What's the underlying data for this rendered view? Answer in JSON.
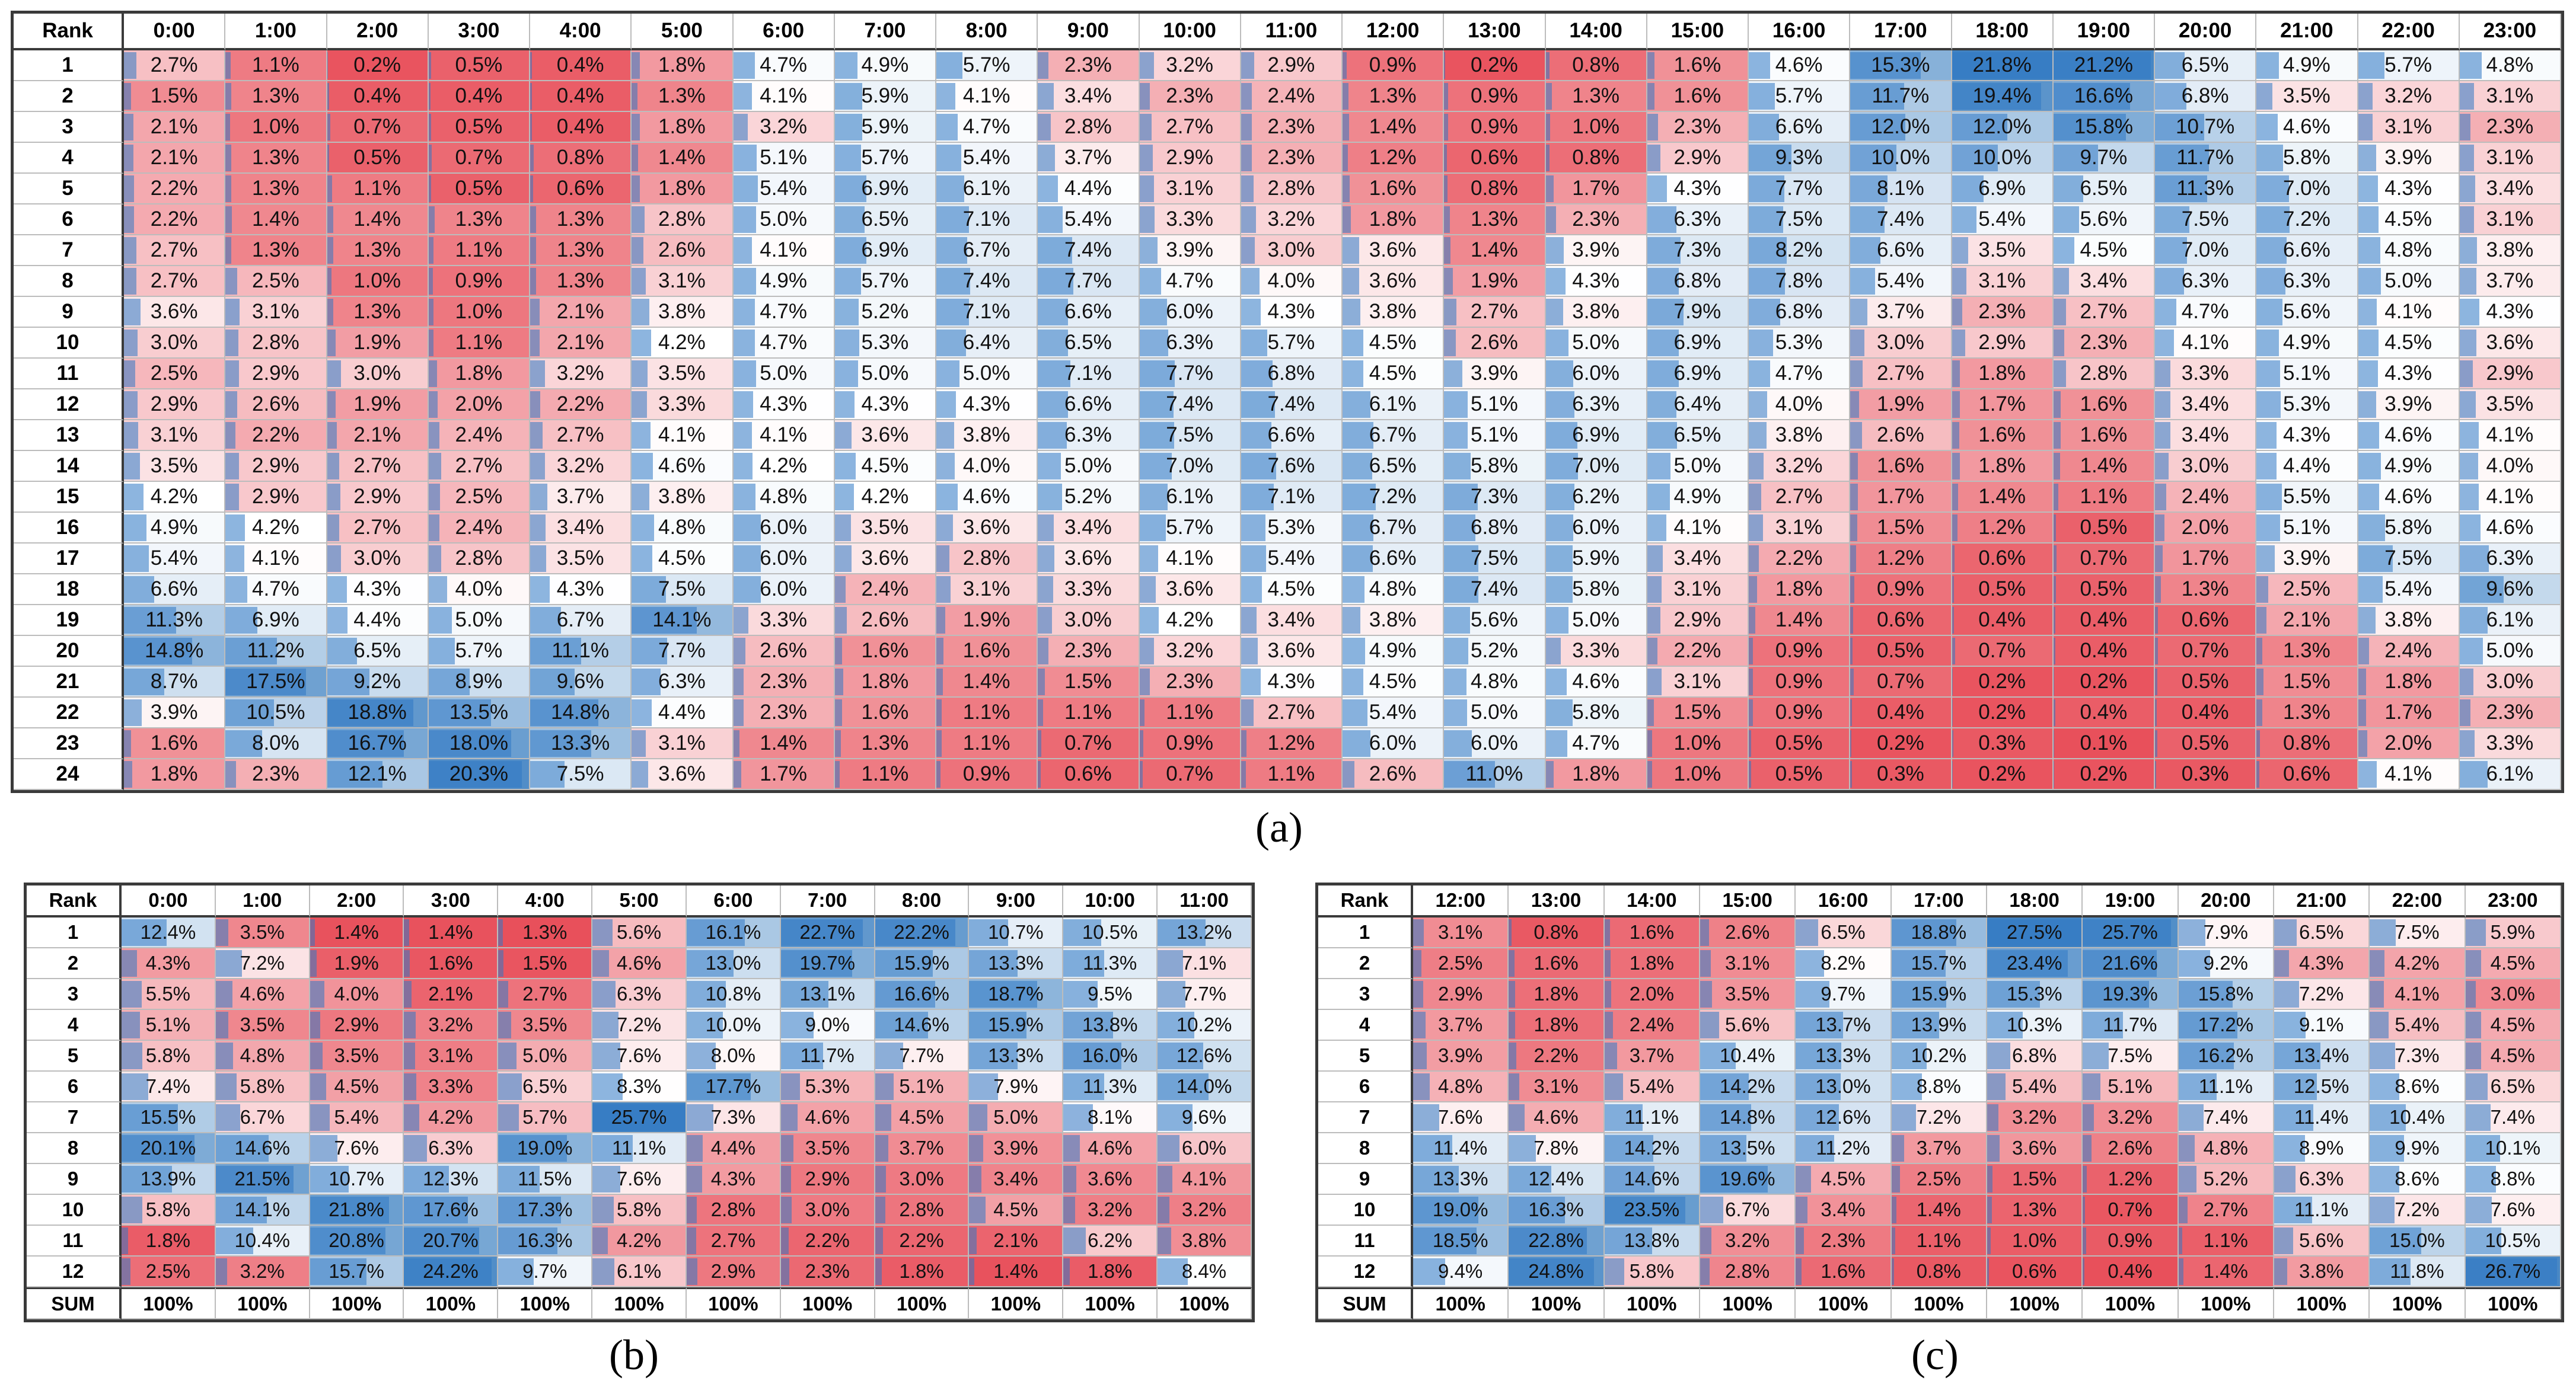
{
  "colors": {
    "low": "#e8505b",
    "mid": "#ffffff",
    "high": "#1f6db8",
    "bar": "#2f78c4"
  },
  "captions": {
    "a": "(a)",
    "b": "(b)",
    "c": "(c)"
  },
  "chart_data": [
    {
      "type": "table",
      "id": "a",
      "corner": "Rank",
      "columns": [
        "0:00",
        "1:00",
        "2:00",
        "3:00",
        "4:00",
        "5:00",
        "6:00",
        "7:00",
        "8:00",
        "9:00",
        "10:00",
        "11:00",
        "12:00",
        "13:00",
        "14:00",
        "15:00",
        "16:00",
        "17:00",
        "18:00",
        "19:00",
        "20:00",
        "21:00",
        "22:00",
        "23:00"
      ],
      "ranks": [
        "1",
        "2",
        "3",
        "4",
        "5",
        "6",
        "7",
        "8",
        "9",
        "10",
        "11",
        "12",
        "13",
        "14",
        "15",
        "16",
        "17",
        "18",
        "19",
        "20",
        "21",
        "22",
        "23",
        "24"
      ],
      "values": [
        [
          "2.7%",
          "1.1%",
          "0.2%",
          "0.5%",
          "0.4%",
          "1.8%",
          "4.7%",
          "4.9%",
          "5.7%",
          "2.3%",
          "3.2%",
          "2.9%",
          "0.9%",
          "0.2%",
          "0.8%",
          "1.6%",
          "4.6%",
          "15.3%",
          "21.8%",
          "21.2%",
          "6.5%",
          "4.9%",
          "5.7%",
          "4.8%"
        ],
        [
          "1.5%",
          "1.3%",
          "0.4%",
          "0.4%",
          "0.4%",
          "1.3%",
          "4.1%",
          "5.9%",
          "4.1%",
          "3.4%",
          "2.3%",
          "2.4%",
          "1.3%",
          "0.9%",
          "1.3%",
          "1.6%",
          "5.7%",
          "11.7%",
          "19.4%",
          "16.6%",
          "6.8%",
          "3.5%",
          "3.2%",
          "3.1%"
        ],
        [
          "2.1%",
          "1.0%",
          "0.7%",
          "0.5%",
          "0.4%",
          "1.8%",
          "3.2%",
          "5.9%",
          "4.7%",
          "2.8%",
          "2.7%",
          "2.3%",
          "1.4%",
          "0.9%",
          "1.0%",
          "2.3%",
          "6.6%",
          "12.0%",
          "12.0%",
          "15.8%",
          "10.7%",
          "4.6%",
          "3.1%",
          "2.3%"
        ],
        [
          "2.1%",
          "1.3%",
          "0.5%",
          "0.7%",
          "0.8%",
          "1.4%",
          "5.1%",
          "5.7%",
          "5.4%",
          "3.7%",
          "2.9%",
          "2.3%",
          "1.2%",
          "0.6%",
          "0.8%",
          "2.9%",
          "9.3%",
          "10.0%",
          "10.0%",
          "9.7%",
          "11.7%",
          "5.8%",
          "3.9%",
          "3.1%"
        ],
        [
          "2.2%",
          "1.3%",
          "1.1%",
          "0.5%",
          "0.6%",
          "1.8%",
          "5.4%",
          "6.9%",
          "6.1%",
          "4.4%",
          "3.1%",
          "2.8%",
          "1.6%",
          "0.8%",
          "1.7%",
          "4.3%",
          "7.7%",
          "8.1%",
          "6.9%",
          "6.5%",
          "11.3%",
          "7.0%",
          "4.3%",
          "3.4%"
        ],
        [
          "2.2%",
          "1.4%",
          "1.4%",
          "1.3%",
          "1.3%",
          "2.8%",
          "5.0%",
          "6.5%",
          "7.1%",
          "5.4%",
          "3.3%",
          "3.2%",
          "1.8%",
          "1.3%",
          "2.3%",
          "6.3%",
          "7.5%",
          "7.4%",
          "5.4%",
          "5.6%",
          "7.5%",
          "7.2%",
          "4.5%",
          "3.1%"
        ],
        [
          "2.7%",
          "1.3%",
          "1.3%",
          "1.1%",
          "1.3%",
          "2.6%",
          "4.1%",
          "6.9%",
          "6.7%",
          "7.4%",
          "3.9%",
          "3.0%",
          "3.6%",
          "1.4%",
          "3.9%",
          "7.3%",
          "8.2%",
          "6.6%",
          "3.5%",
          "4.5%",
          "7.0%",
          "6.6%",
          "4.8%",
          "3.8%"
        ],
        [
          "2.7%",
          "2.5%",
          "1.0%",
          "0.9%",
          "1.3%",
          "3.1%",
          "4.9%",
          "5.7%",
          "7.4%",
          "7.7%",
          "4.7%",
          "4.0%",
          "3.6%",
          "1.9%",
          "4.3%",
          "6.8%",
          "7.8%",
          "5.4%",
          "3.1%",
          "3.4%",
          "6.3%",
          "6.3%",
          "5.0%",
          "3.7%"
        ],
        [
          "3.6%",
          "3.1%",
          "1.3%",
          "1.0%",
          "2.1%",
          "3.8%",
          "4.7%",
          "5.2%",
          "7.1%",
          "6.6%",
          "6.0%",
          "4.3%",
          "3.8%",
          "2.7%",
          "3.8%",
          "7.9%",
          "6.8%",
          "3.7%",
          "2.3%",
          "2.7%",
          "4.7%",
          "5.6%",
          "4.1%",
          "4.3%"
        ],
        [
          "3.0%",
          "2.8%",
          "1.9%",
          "1.1%",
          "2.1%",
          "4.2%",
          "4.7%",
          "5.3%",
          "6.4%",
          "6.5%",
          "6.3%",
          "5.7%",
          "4.5%",
          "2.6%",
          "5.0%",
          "6.9%",
          "5.3%",
          "3.0%",
          "2.9%",
          "2.3%",
          "4.1%",
          "4.9%",
          "4.5%",
          "3.6%"
        ],
        [
          "2.5%",
          "2.9%",
          "3.0%",
          "1.8%",
          "3.2%",
          "3.5%",
          "5.0%",
          "5.0%",
          "5.0%",
          "7.1%",
          "7.7%",
          "6.8%",
          "4.5%",
          "3.9%",
          "6.0%",
          "6.9%",
          "4.7%",
          "2.7%",
          "1.8%",
          "2.8%",
          "3.3%",
          "5.1%",
          "4.3%",
          "2.9%"
        ],
        [
          "2.9%",
          "2.6%",
          "1.9%",
          "2.0%",
          "2.2%",
          "3.3%",
          "4.3%",
          "4.3%",
          "4.3%",
          "6.6%",
          "7.4%",
          "7.4%",
          "6.1%",
          "5.1%",
          "6.3%",
          "6.4%",
          "4.0%",
          "1.9%",
          "1.7%",
          "1.6%",
          "3.4%",
          "5.3%",
          "3.9%",
          "3.5%"
        ],
        [
          "3.1%",
          "2.2%",
          "2.1%",
          "2.4%",
          "2.7%",
          "4.1%",
          "4.1%",
          "3.6%",
          "3.8%",
          "6.3%",
          "7.5%",
          "6.6%",
          "6.7%",
          "5.1%",
          "6.9%",
          "6.5%",
          "3.8%",
          "2.6%",
          "1.6%",
          "1.6%",
          "3.4%",
          "4.3%",
          "4.6%",
          "4.1%"
        ],
        [
          "3.5%",
          "2.9%",
          "2.7%",
          "2.7%",
          "3.2%",
          "4.6%",
          "4.2%",
          "4.5%",
          "4.0%",
          "5.0%",
          "7.0%",
          "7.6%",
          "6.5%",
          "5.8%",
          "7.0%",
          "5.0%",
          "3.2%",
          "1.6%",
          "1.8%",
          "1.4%",
          "3.0%",
          "4.4%",
          "4.9%",
          "4.0%"
        ],
        [
          "4.2%",
          "2.9%",
          "2.9%",
          "2.5%",
          "3.7%",
          "3.8%",
          "4.8%",
          "4.2%",
          "4.6%",
          "5.2%",
          "6.1%",
          "7.1%",
          "7.2%",
          "7.3%",
          "6.2%",
          "4.9%",
          "2.7%",
          "1.7%",
          "1.4%",
          "1.1%",
          "2.4%",
          "5.5%",
          "4.6%",
          "4.1%"
        ],
        [
          "4.9%",
          "4.2%",
          "2.7%",
          "2.4%",
          "3.4%",
          "4.8%",
          "6.0%",
          "3.5%",
          "3.6%",
          "3.4%",
          "5.7%",
          "5.3%",
          "6.7%",
          "6.8%",
          "6.0%",
          "4.1%",
          "3.1%",
          "1.5%",
          "1.2%",
          "0.5%",
          "2.0%",
          "5.1%",
          "5.8%",
          "4.6%"
        ],
        [
          "5.4%",
          "4.1%",
          "3.0%",
          "2.8%",
          "3.5%",
          "4.5%",
          "6.0%",
          "3.6%",
          "2.8%",
          "3.6%",
          "4.1%",
          "5.4%",
          "6.6%",
          "7.5%",
          "5.9%",
          "3.4%",
          "2.2%",
          "1.2%",
          "0.6%",
          "0.7%",
          "1.7%",
          "3.9%",
          "7.5%",
          "6.3%"
        ],
        [
          "6.6%",
          "4.7%",
          "4.3%",
          "4.0%",
          "4.3%",
          "7.5%",
          "6.0%",
          "2.4%",
          "3.1%",
          "3.3%",
          "3.6%",
          "4.5%",
          "4.8%",
          "7.4%",
          "5.8%",
          "3.1%",
          "1.8%",
          "0.9%",
          "0.5%",
          "0.5%",
          "1.3%",
          "2.5%",
          "5.4%",
          "9.6%"
        ],
        [
          "11.3%",
          "6.9%",
          "4.4%",
          "5.0%",
          "6.7%",
          "14.1%",
          "3.3%",
          "2.6%",
          "1.9%",
          "3.0%",
          "4.2%",
          "3.4%",
          "3.8%",
          "5.6%",
          "5.0%",
          "2.9%",
          "1.4%",
          "0.6%",
          "0.4%",
          "0.4%",
          "0.6%",
          "2.1%",
          "3.8%",
          "6.1%"
        ],
        [
          "14.8%",
          "11.2%",
          "6.5%",
          "5.7%",
          "11.1%",
          "7.7%",
          "2.6%",
          "1.6%",
          "1.6%",
          "2.3%",
          "3.2%",
          "3.6%",
          "4.9%",
          "5.2%",
          "3.3%",
          "2.2%",
          "0.9%",
          "0.5%",
          "0.7%",
          "0.4%",
          "0.7%",
          "1.3%",
          "2.4%",
          "5.0%"
        ],
        [
          "8.7%",
          "17.5%",
          "9.2%",
          "8.9%",
          "9.6%",
          "6.3%",
          "2.3%",
          "1.8%",
          "1.4%",
          "1.5%",
          "2.3%",
          "4.3%",
          "4.5%",
          "4.8%",
          "4.6%",
          "3.1%",
          "0.9%",
          "0.7%",
          "0.2%",
          "0.2%",
          "0.5%",
          "1.5%",
          "1.8%",
          "3.0%"
        ],
        [
          "3.9%",
          "10.5%",
          "18.8%",
          "13.5%",
          "14.8%",
          "4.4%",
          "2.3%",
          "1.6%",
          "1.1%",
          "1.1%",
          "1.1%",
          "2.7%",
          "5.4%",
          "5.0%",
          "5.8%",
          "1.5%",
          "0.9%",
          "0.4%",
          "0.2%",
          "0.4%",
          "0.4%",
          "1.3%",
          "1.7%",
          "2.3%"
        ],
        [
          "1.6%",
          "8.0%",
          "16.7%",
          "18.0%",
          "13.3%",
          "3.1%",
          "1.4%",
          "1.3%",
          "1.1%",
          "0.7%",
          "0.9%",
          "1.2%",
          "6.0%",
          "6.0%",
          "4.7%",
          "1.0%",
          "0.5%",
          "0.2%",
          "0.3%",
          "0.1%",
          "0.5%",
          "0.8%",
          "2.0%",
          "3.3%"
        ],
        [
          "1.8%",
          "2.3%",
          "12.1%",
          "20.3%",
          "7.5%",
          "3.6%",
          "1.7%",
          "1.1%",
          "0.9%",
          "0.6%",
          "0.7%",
          "1.1%",
          "2.6%",
          "11.0%",
          "1.8%",
          "1.0%",
          "0.5%",
          "0.3%",
          "0.2%",
          "0.2%",
          "0.3%",
          "0.6%",
          "4.1%",
          "6.1%"
        ]
      ]
    },
    {
      "type": "table",
      "id": "b",
      "corner": "Rank",
      "columns": [
        "0:00",
        "1:00",
        "2:00",
        "3:00",
        "4:00",
        "5:00",
        "6:00",
        "7:00",
        "8:00",
        "9:00",
        "10:00",
        "11:00"
      ],
      "ranks": [
        "1",
        "2",
        "3",
        "4",
        "5",
        "6",
        "7",
        "8",
        "9",
        "10",
        "11",
        "12"
      ],
      "values": [
        [
          "12.4%",
          "3.5%",
          "1.4%",
          "1.4%",
          "1.3%",
          "5.6%",
          "16.1%",
          "22.7%",
          "22.2%",
          "10.7%",
          "10.5%",
          "13.2%"
        ],
        [
          "4.3%",
          "7.2%",
          "1.9%",
          "1.6%",
          "1.5%",
          "4.6%",
          "13.0%",
          "19.7%",
          "15.9%",
          "13.3%",
          "11.3%",
          "7.1%"
        ],
        [
          "5.5%",
          "4.6%",
          "4.0%",
          "2.1%",
          "2.7%",
          "6.3%",
          "10.8%",
          "13.1%",
          "16.6%",
          "18.7%",
          "9.5%",
          "7.7%"
        ],
        [
          "5.1%",
          "3.5%",
          "2.9%",
          "3.2%",
          "3.5%",
          "7.2%",
          "10.0%",
          "9.0%",
          "14.6%",
          "15.9%",
          "13.8%",
          "10.2%"
        ],
        [
          "5.8%",
          "4.8%",
          "3.5%",
          "3.1%",
          "5.0%",
          "7.6%",
          "8.0%",
          "11.7%",
          "7.7%",
          "13.3%",
          "16.0%",
          "12.6%"
        ],
        [
          "7.4%",
          "5.8%",
          "4.5%",
          "3.3%",
          "6.5%",
          "8.3%",
          "17.7%",
          "5.3%",
          "5.1%",
          "7.9%",
          "11.3%",
          "14.0%"
        ],
        [
          "15.5%",
          "6.7%",
          "5.4%",
          "4.2%",
          "5.7%",
          "25.7%",
          "7.3%",
          "4.6%",
          "4.5%",
          "5.0%",
          "8.1%",
          "9.6%"
        ],
        [
          "20.1%",
          "14.6%",
          "7.6%",
          "6.3%",
          "19.0%",
          "11.1%",
          "4.4%",
          "3.5%",
          "3.7%",
          "3.9%",
          "4.6%",
          "6.0%"
        ],
        [
          "13.9%",
          "21.5%",
          "10.7%",
          "12.3%",
          "11.5%",
          "7.6%",
          "4.3%",
          "2.9%",
          "3.0%",
          "3.4%",
          "3.6%",
          "4.1%"
        ],
        [
          "5.8%",
          "14.1%",
          "21.8%",
          "17.6%",
          "17.3%",
          "5.8%",
          "2.8%",
          "3.0%",
          "2.8%",
          "4.5%",
          "3.2%",
          "3.2%"
        ],
        [
          "1.8%",
          "10.4%",
          "20.8%",
          "20.7%",
          "16.3%",
          "4.2%",
          "2.7%",
          "2.2%",
          "2.2%",
          "2.1%",
          "6.2%",
          "3.8%"
        ],
        [
          "2.5%",
          "3.2%",
          "15.7%",
          "24.2%",
          "9.7%",
          "6.1%",
          "2.9%",
          "2.3%",
          "1.8%",
          "1.4%",
          "1.8%",
          "8.4%"
        ]
      ],
      "sum_label": "SUM",
      "sums": [
        "100%",
        "100%",
        "100%",
        "100%",
        "100%",
        "100%",
        "100%",
        "100%",
        "100%",
        "100%",
        "100%",
        "100%"
      ]
    },
    {
      "type": "table",
      "id": "c",
      "corner": "Rank",
      "columns": [
        "12:00",
        "13:00",
        "14:00",
        "15:00",
        "16:00",
        "17:00",
        "18:00",
        "19:00",
        "20:00",
        "21:00",
        "22:00",
        "23:00"
      ],
      "ranks": [
        "1",
        "2",
        "3",
        "4",
        "5",
        "6",
        "7",
        "8",
        "9",
        "10",
        "11",
        "12"
      ],
      "values": [
        [
          "3.1%",
          "0.8%",
          "1.6%",
          "2.6%",
          "6.5%",
          "18.8%",
          "27.5%",
          "25.7%",
          "7.9%",
          "6.5%",
          "7.5%",
          "5.9%"
        ],
        [
          "2.5%",
          "1.6%",
          "1.8%",
          "3.1%",
          "8.2%",
          "15.7%",
          "23.4%",
          "21.6%",
          "9.2%",
          "4.3%",
          "4.2%",
          "4.5%"
        ],
        [
          "2.9%",
          "1.8%",
          "2.0%",
          "3.5%",
          "9.7%",
          "15.9%",
          "15.3%",
          "19.3%",
          "15.8%",
          "7.2%",
          "4.1%",
          "3.0%"
        ],
        [
          "3.7%",
          "1.8%",
          "2.4%",
          "5.6%",
          "13.7%",
          "13.9%",
          "10.3%",
          "11.7%",
          "17.2%",
          "9.1%",
          "5.4%",
          "4.5%"
        ],
        [
          "3.9%",
          "2.2%",
          "3.7%",
          "10.4%",
          "13.3%",
          "10.2%",
          "6.8%",
          "7.5%",
          "16.2%",
          "13.4%",
          "7.3%",
          "4.5%"
        ],
        [
          "4.8%",
          "3.1%",
          "5.4%",
          "14.2%",
          "13.0%",
          "8.8%",
          "5.4%",
          "5.1%",
          "11.1%",
          "12.5%",
          "8.6%",
          "6.5%"
        ],
        [
          "7.6%",
          "4.6%",
          "11.1%",
          "14.8%",
          "12.6%",
          "7.2%",
          "3.2%",
          "3.2%",
          "7.4%",
          "11.4%",
          "10.4%",
          "7.4%"
        ],
        [
          "11.4%",
          "7.8%",
          "14.2%",
          "13.5%",
          "11.2%",
          "3.7%",
          "3.6%",
          "2.6%",
          "4.8%",
          "8.9%",
          "9.9%",
          "10.1%"
        ],
        [
          "13.3%",
          "12.4%",
          "14.6%",
          "19.6%",
          "4.5%",
          "2.5%",
          "1.5%",
          "1.2%",
          "5.2%",
          "6.3%",
          "8.6%",
          "8.8%"
        ],
        [
          "19.0%",
          "16.3%",
          "23.5%",
          "6.7%",
          "3.4%",
          "1.4%",
          "1.3%",
          "0.7%",
          "2.7%",
          "11.1%",
          "7.2%",
          "7.6%"
        ],
        [
          "18.5%",
          "22.8%",
          "13.8%",
          "3.2%",
          "2.3%",
          "1.1%",
          "1.0%",
          "0.9%",
          "1.1%",
          "5.6%",
          "15.0%",
          "10.5%"
        ],
        [
          "9.4%",
          "24.8%",
          "5.8%",
          "2.8%",
          "1.6%",
          "0.8%",
          "0.6%",
          "0.4%",
          "1.4%",
          "3.8%",
          "11.8%",
          "26.7%"
        ]
      ],
      "sum_label": "SUM",
      "sums": [
        "100%",
        "100%",
        "100%",
        "100%",
        "100%",
        "100%",
        "100%",
        "100%",
        "100%",
        "100%",
        "100%",
        "100%"
      ]
    }
  ]
}
